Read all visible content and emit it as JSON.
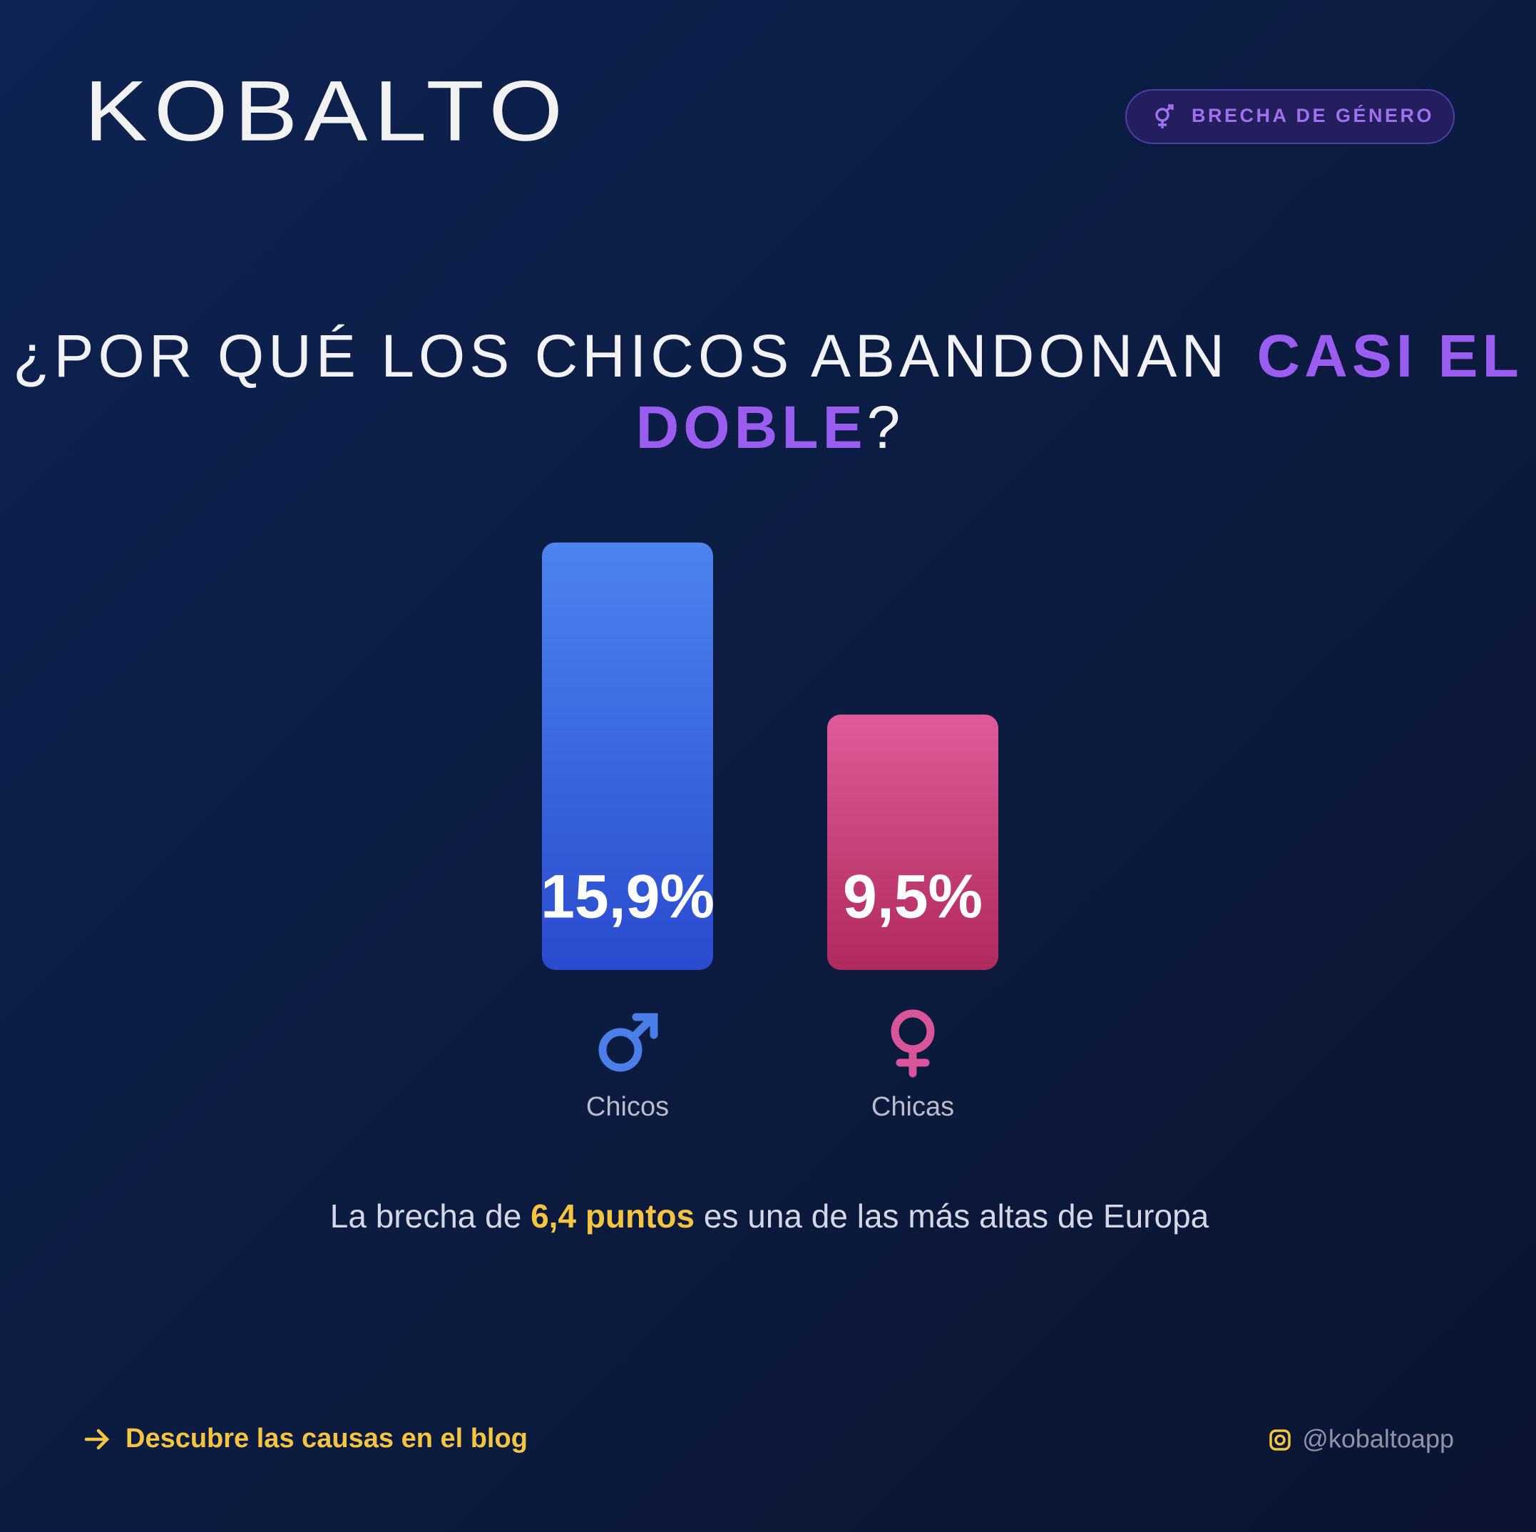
{
  "brand": "KOBALTO",
  "badge": "BRECHA DE GÉNERO",
  "chart_data": {
    "type": "bar",
    "title": {
      "lead": "¿POR QUÉ LOS CHICOS ABANDONAN",
      "highlight": "CASI EL DOBLE",
      "end": "?"
    },
    "categories": [
      "Chicos",
      "Chicas"
    ],
    "values": [
      15.9,
      9.5
    ],
    "value_labels": [
      "15,9%",
      "9,5%"
    ],
    "colors": [
      "#4d84ef",
      "#e05a98"
    ],
    "colors_bottom": [
      "#2a4bcf",
      "#b02a5e"
    ]
  },
  "note": {
    "lead": "La brecha de",
    "highlight": "6,4 puntos",
    "end": "es una de las más altas de Europa"
  },
  "footer": {
    "link": "Descubre las causas en el blog",
    "handle": "@kobaltoapp"
  }
}
